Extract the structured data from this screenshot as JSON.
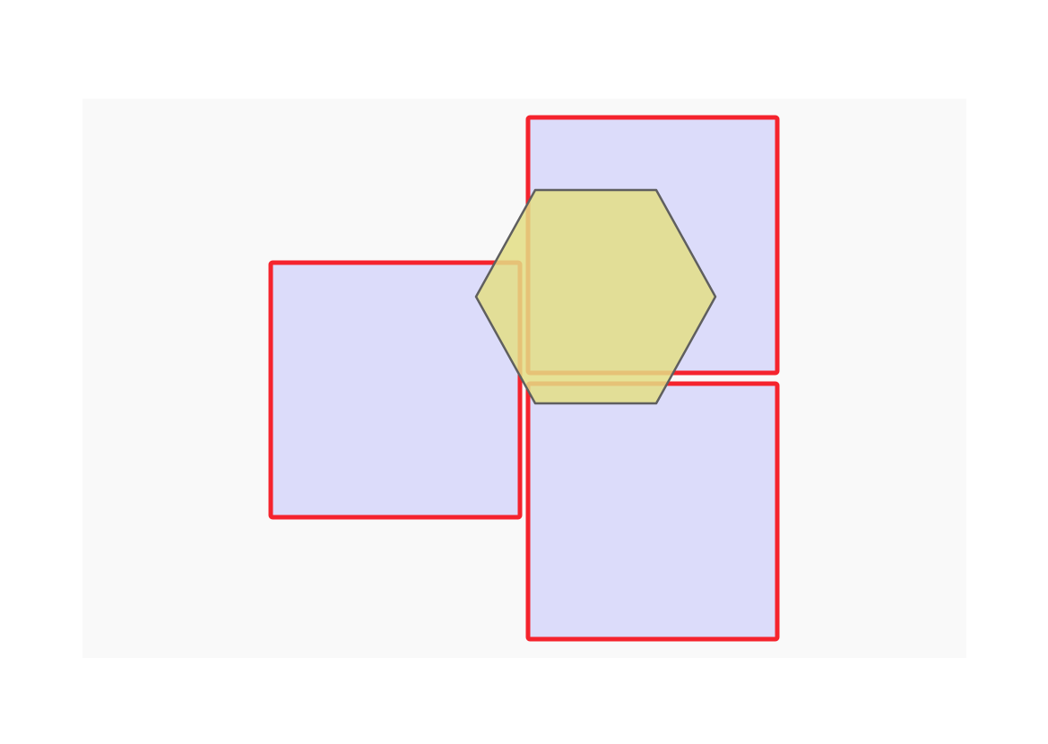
{
  "diagram": {
    "colors": {
      "page_background": "#ffffff",
      "canvas_background": "#f9f9f9",
      "square_fill": "#dcdcfa",
      "square_stroke": "#f5232d",
      "hexagon_fill": "#e3de85",
      "hexagon_stroke": "#5f5f5f"
    },
    "squares": [
      {
        "name": "left-square"
      },
      {
        "name": "top-right-square"
      },
      {
        "name": "bottom-right-square"
      }
    ],
    "hexagon": {
      "name": "center-hexagon"
    }
  }
}
